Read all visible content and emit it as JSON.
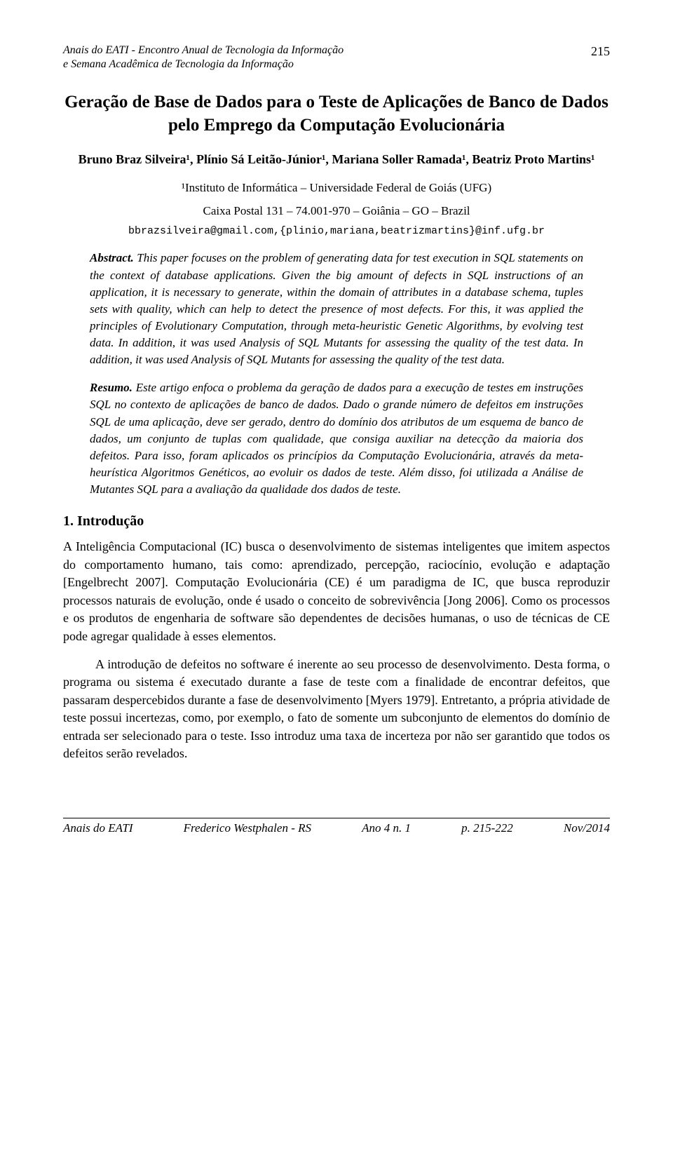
{
  "header": {
    "line1": "Anais do EATI - Encontro Anual de Tecnologia da Informação",
    "line2": "e Semana Acadêmica de Tecnologia da Informação",
    "page_number": "215"
  },
  "title": "Geração de Base de Dados para o Teste de Aplicações de Banco de Dados pelo Emprego da Computação Evolucionária",
  "authors": "Bruno Braz Silveira¹, Plínio Sá Leitão-Júnior¹, Mariana Soller Ramada¹, Beatriz Proto Martins¹",
  "affiliation": {
    "line1": "¹Instituto de Informática – Universidade Federal de Goiás (UFG)",
    "line2": "Caixa Postal 131 – 74.001-970 – Goiânia – GO – Brazil"
  },
  "email": "bbrazsilveira@gmail.com,{plinio,mariana,beatrizmartins}@inf.ufg.br",
  "abstract_en": {
    "label": "Abstract.",
    "text": " This paper focuses on the problem of generating data for test execution in SQL statements on the context of database applications. Given the big amount of defects in SQL instructions of an application, it is necessary to generate, within the domain of attributes in a database schema, tuples sets with quality, which can help to detect the presence of most defects. For this, it was applied the principles of Evolutionary Computation, through meta-heuristic Genetic Algorithms, by evolving test data. In addition, it was used Analysis of SQL Mutants for assessing the quality of the test data. In addition, it was used Analysis of SQL Mutants for assessing the quality of the test data."
  },
  "abstract_pt": {
    "label": "Resumo.",
    "text": " Este artigo enfoca o problema da geração de dados para a execução de testes em instruções SQL no contexto de aplicações de banco de dados. Dado o grande número de defeitos em instruções SQL de uma aplicação, deve ser gerado, dentro do domínio dos atributos de um esquema de banco de dados, um conjunto de tuplas com qualidade, que consiga auxiliar na detecção da maioria dos defeitos. Para isso, foram aplicados os princípios da Computação Evolucionária, através da meta-heurística Algoritmos Genéticos, ao evoluir os dados de teste. Além disso, foi utilizada a Análise de Mutantes SQL para a avaliação da qualidade dos dados de teste."
  },
  "section1": {
    "title": "1. Introdução",
    "p1": "A Inteligência Computacional (IC) busca o desenvolvimento de sistemas inteligentes que imitem aspectos do comportamento humano, tais como: aprendizado, percepção, raciocínio, evolução e adaptação [Engelbrecht 2007]. Computação Evolucionária (CE) é um paradigma de IC, que busca reproduzir processos naturais de evolução, onde é usado o conceito de sobrevivência [Jong 2006]. Como os processos e os produtos de engenharia de software são dependentes de decisões humanas, o uso de técnicas de CE pode agregar qualidade à esses elementos.",
    "p2": "A introdução de defeitos no software é inerente ao seu processo de desenvolvimento. Desta forma, o programa ou sistema é executado durante a fase de teste com a finalidade de encontrar defeitos, que passaram despercebidos durante a fase de desenvolvimento [Myers 1979]. Entretanto, a própria atividade de teste possui incertezas, como, por exemplo, o fato de somente um subconjunto de elementos do domínio de entrada ser selecionado para o teste. Isso introduz uma taxa de incerteza por não ser garantido que todos os defeitos serão revelados."
  },
  "footer": {
    "c1": "Anais do EATI",
    "c2": "Frederico Westphalen - RS",
    "c3": "Ano 4 n. 1",
    "c4": "p. 215-222",
    "c5": "Nov/2014"
  }
}
